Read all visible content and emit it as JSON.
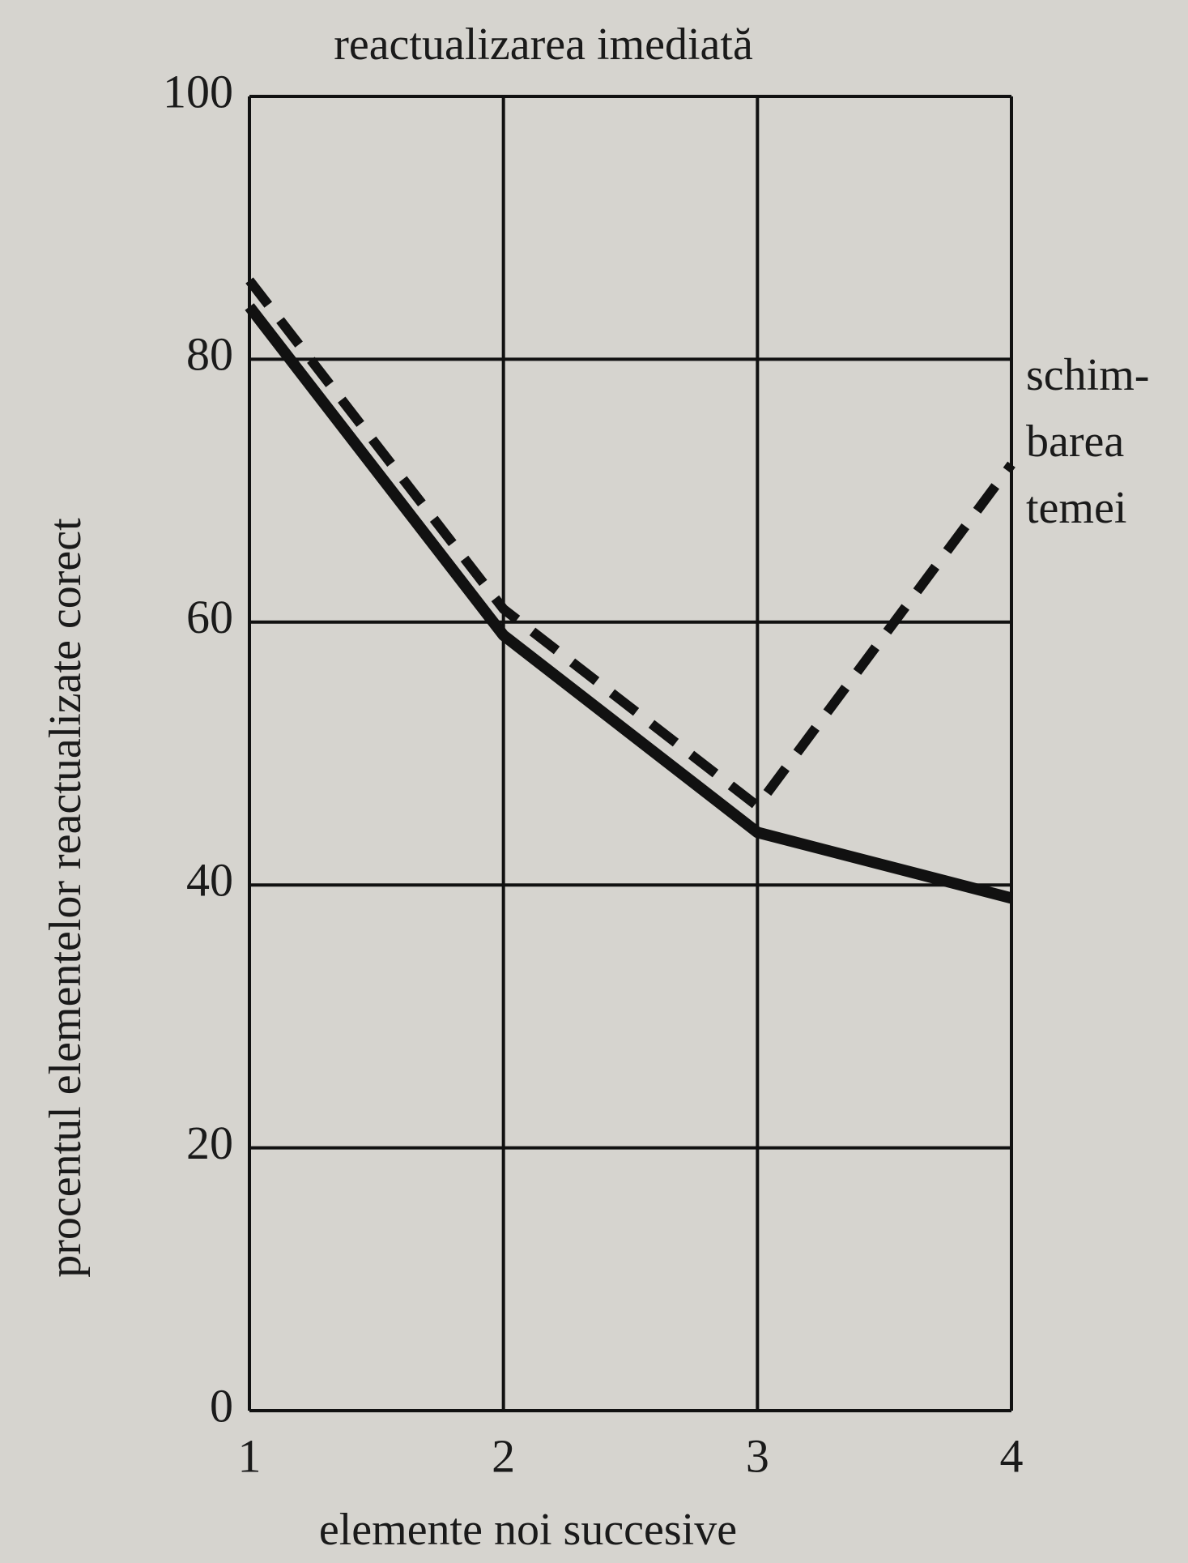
{
  "chart_data": {
    "type": "line",
    "title": "reactualizarea imediată",
    "xlabel": "elemente noi succesive",
    "ylabel": "procentul elementelor reactualizate corect",
    "annotation": [
      "schim-",
      "barea",
      "temei"
    ],
    "x": [
      1,
      2,
      3,
      4
    ],
    "series": [
      {
        "color": "#111111",
        "style": "solid",
        "values": [
          84,
          59,
          44,
          39
        ]
      },
      {
        "color": "#111111",
        "style": "dashed",
        "values": [
          86,
          61,
          46,
          72
        ]
      }
    ],
    "xlim": [
      1,
      4
    ],
    "xticks": [
      1,
      2,
      3,
      4
    ],
    "ylim": [
      0,
      100
    ],
    "yticks": [
      0,
      20,
      40,
      60,
      80,
      100
    ],
    "grid": true
  }
}
